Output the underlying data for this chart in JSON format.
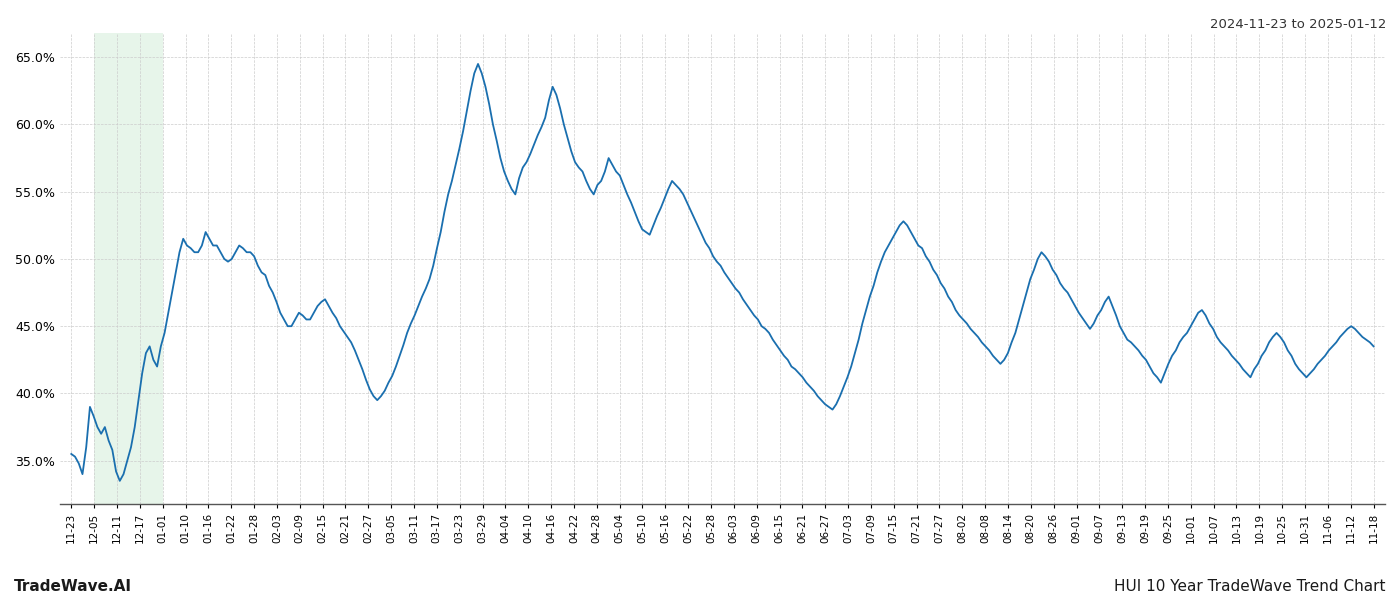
{
  "title_top_right": "2024-11-23 to 2025-01-12",
  "title_bottom_right": "HUI 10 Year TradeWave Trend Chart",
  "title_bottom_left": "TradeWave.AI",
  "line_color": "#1a6faf",
  "line_width": 1.3,
  "shade_color": "#d4edda",
  "shade_alpha": 0.55,
  "background_color": "#ffffff",
  "grid_color": "#cccccc",
  "ylim": [
    0.318,
    0.668
  ],
  "yticks": [
    0.35,
    0.4,
    0.45,
    0.5,
    0.55,
    0.6,
    0.65
  ],
  "xtick_labels": [
    "11-23",
    "12-05",
    "12-11",
    "12-17",
    "01-01",
    "01-10",
    "01-16",
    "01-22",
    "01-28",
    "02-03",
    "02-09",
    "02-15",
    "02-21",
    "02-27",
    "03-05",
    "03-11",
    "03-17",
    "03-23",
    "03-29",
    "04-04",
    "04-10",
    "04-16",
    "04-22",
    "04-28",
    "05-04",
    "05-10",
    "05-16",
    "05-22",
    "05-28",
    "06-03",
    "06-09",
    "06-15",
    "06-21",
    "06-27",
    "07-03",
    "07-09",
    "07-15",
    "07-21",
    "07-27",
    "08-02",
    "08-08",
    "08-14",
    "08-20",
    "08-26",
    "09-01",
    "09-07",
    "09-13",
    "09-19",
    "09-25",
    "10-01",
    "10-07",
    "10-13",
    "10-19",
    "10-25",
    "10-31",
    "11-06",
    "11-12",
    "11-18"
  ],
  "shade_xstart_label": "12-05",
  "shade_xend_label": "01-01",
  "values": [
    0.355,
    0.353,
    0.348,
    0.34,
    0.36,
    0.39,
    0.383,
    0.375,
    0.37,
    0.375,
    0.365,
    0.358,
    0.342,
    0.335,
    0.34,
    0.35,
    0.36,
    0.375,
    0.395,
    0.415,
    0.43,
    0.435,
    0.425,
    0.42,
    0.435,
    0.445,
    0.46,
    0.475,
    0.49,
    0.505,
    0.515,
    0.51,
    0.508,
    0.505,
    0.505,
    0.51,
    0.52,
    0.515,
    0.51,
    0.51,
    0.505,
    0.5,
    0.498,
    0.5,
    0.505,
    0.51,
    0.508,
    0.505,
    0.505,
    0.502,
    0.495,
    0.49,
    0.488,
    0.48,
    0.475,
    0.468,
    0.46,
    0.455,
    0.45,
    0.45,
    0.455,
    0.46,
    0.458,
    0.455,
    0.455,
    0.46,
    0.465,
    0.468,
    0.47,
    0.465,
    0.46,
    0.456,
    0.45,
    0.446,
    0.442,
    0.438,
    0.432,
    0.425,
    0.418,
    0.41,
    0.403,
    0.398,
    0.395,
    0.398,
    0.402,
    0.408,
    0.413,
    0.42,
    0.428,
    0.436,
    0.445,
    0.452,
    0.458,
    0.465,
    0.472,
    0.478,
    0.485,
    0.495,
    0.508,
    0.52,
    0.535,
    0.548,
    0.558,
    0.57,
    0.582,
    0.595,
    0.61,
    0.625,
    0.638,
    0.645,
    0.638,
    0.628,
    0.615,
    0.6,
    0.588,
    0.575,
    0.565,
    0.558,
    0.552,
    0.548,
    0.56,
    0.568,
    0.572,
    0.578,
    0.585,
    0.592,
    0.598,
    0.605,
    0.618,
    0.628,
    0.622,
    0.612,
    0.6,
    0.59,
    0.58,
    0.572,
    0.568,
    0.565,
    0.558,
    0.552,
    0.548,
    0.555,
    0.558,
    0.565,
    0.575,
    0.57,
    0.565,
    0.562,
    0.555,
    0.548,
    0.542,
    0.535,
    0.528,
    0.522,
    0.52,
    0.518,
    0.525,
    0.532,
    0.538,
    0.545,
    0.552,
    0.558,
    0.555,
    0.552,
    0.548,
    0.542,
    0.536,
    0.53,
    0.524,
    0.518,
    0.512,
    0.508,
    0.502,
    0.498,
    0.495,
    0.49,
    0.486,
    0.482,
    0.478,
    0.475,
    0.47,
    0.466,
    0.462,
    0.458,
    0.455,
    0.45,
    0.448,
    0.445,
    0.44,
    0.436,
    0.432,
    0.428,
    0.425,
    0.42,
    0.418,
    0.415,
    0.412,
    0.408,
    0.405,
    0.402,
    0.398,
    0.395,
    0.392,
    0.39,
    0.388,
    0.392,
    0.398,
    0.405,
    0.412,
    0.42,
    0.43,
    0.44,
    0.452,
    0.462,
    0.472,
    0.48,
    0.49,
    0.498,
    0.505,
    0.51,
    0.515,
    0.52,
    0.525,
    0.528,
    0.525,
    0.52,
    0.515,
    0.51,
    0.508,
    0.502,
    0.498,
    0.492,
    0.488,
    0.482,
    0.478,
    0.472,
    0.468,
    0.462,
    0.458,
    0.455,
    0.452,
    0.448,
    0.445,
    0.442,
    0.438,
    0.435,
    0.432,
    0.428,
    0.425,
    0.422,
    0.425,
    0.43,
    0.438,
    0.445,
    0.455,
    0.465,
    0.475,
    0.485,
    0.492,
    0.5,
    0.505,
    0.502,
    0.498,
    0.492,
    0.488,
    0.482,
    0.478,
    0.475,
    0.47,
    0.465,
    0.46,
    0.456,
    0.452,
    0.448,
    0.452,
    0.458,
    0.462,
    0.468,
    0.472,
    0.465,
    0.458,
    0.45,
    0.445,
    0.44,
    0.438,
    0.435,
    0.432,
    0.428,
    0.425,
    0.42,
    0.415,
    0.412,
    0.408,
    0.415,
    0.422,
    0.428,
    0.432,
    0.438,
    0.442,
    0.445,
    0.45,
    0.455,
    0.46,
    0.462,
    0.458,
    0.452,
    0.448,
    0.442,
    0.438,
    0.435,
    0.432,
    0.428,
    0.425,
    0.422,
    0.418,
    0.415,
    0.412,
    0.418,
    0.422,
    0.428,
    0.432,
    0.438,
    0.442,
    0.445,
    0.442,
    0.438,
    0.432,
    0.428,
    0.422,
    0.418,
    0.415,
    0.412,
    0.415,
    0.418,
    0.422,
    0.425,
    0.428,
    0.432,
    0.435,
    0.438,
    0.442,
    0.445,
    0.448,
    0.45,
    0.448,
    0.445,
    0.442,
    0.44,
    0.438,
    0.435
  ]
}
